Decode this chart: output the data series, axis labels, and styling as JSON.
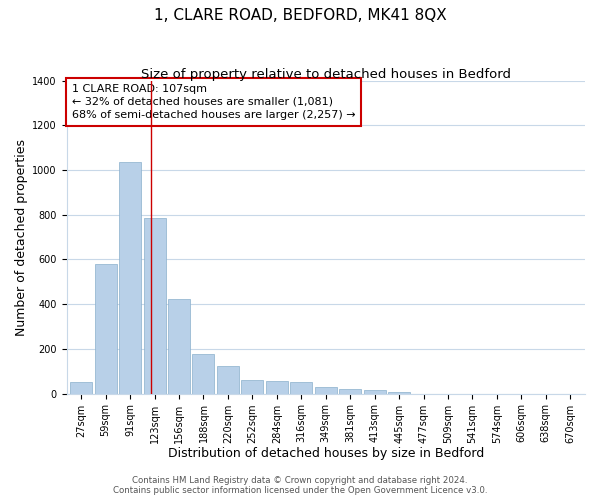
{
  "title": "1, CLARE ROAD, BEDFORD, MK41 8QX",
  "subtitle": "Size of property relative to detached houses in Bedford",
  "xlabel": "Distribution of detached houses by size in Bedford",
  "ylabel": "Number of detached properties",
  "categories": [
    "27sqm",
    "59sqm",
    "91sqm",
    "123sqm",
    "156sqm",
    "188sqm",
    "220sqm",
    "252sqm",
    "284sqm",
    "316sqm",
    "349sqm",
    "381sqm",
    "413sqm",
    "445sqm",
    "477sqm",
    "509sqm",
    "541sqm",
    "574sqm",
    "606sqm",
    "638sqm",
    "670sqm"
  ],
  "values": [
    50,
    578,
    1035,
    783,
    425,
    175,
    125,
    63,
    55,
    50,
    30,
    22,
    15,
    8,
    0,
    0,
    0,
    0,
    0,
    0,
    0
  ],
  "bar_color": "#b8d0e8",
  "bar_edge_color": "#8ab0cc",
  "vline_x_index": 2.87,
  "vline_color": "#cc0000",
  "annotation_box_text": "1 CLARE ROAD: 107sqm\n← 32% of detached houses are smaller (1,081)\n68% of semi-detached houses are larger (2,257) →",
  "box_edge_color": "#cc0000",
  "ylim": [
    0,
    1400
  ],
  "yticks": [
    0,
    200,
    400,
    600,
    800,
    1000,
    1200,
    1400
  ],
  "fig_bg_color": "#ffffff",
  "plot_bg_color": "#ffffff",
  "grid_color": "#c8d8e8",
  "footer_line1": "Contains HM Land Registry data © Crown copyright and database right 2024.",
  "footer_line2": "Contains public sector information licensed under the Open Government Licence v3.0.",
  "title_fontsize": 11,
  "subtitle_fontsize": 9.5,
  "axis_label_fontsize": 9,
  "tick_fontsize": 7,
  "annotation_fontsize": 8,
  "footer_fontsize": 6.2
}
